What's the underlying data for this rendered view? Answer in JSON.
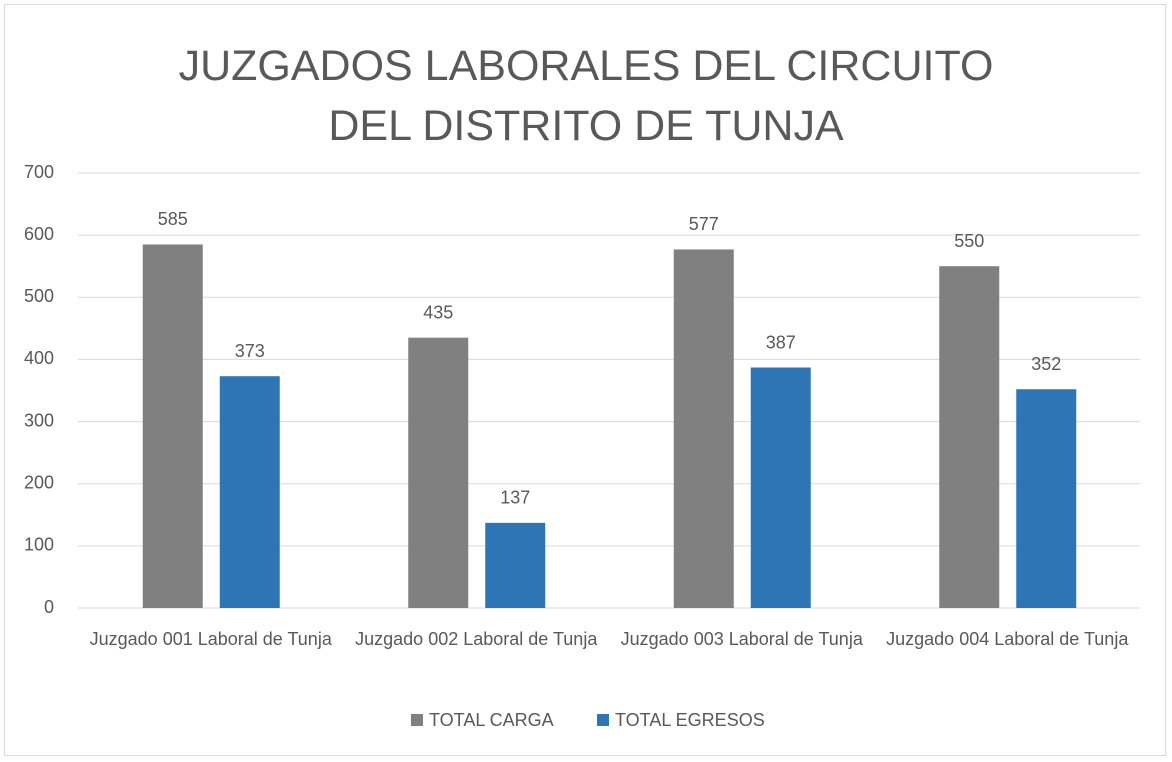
{
  "chart_data": {
    "type": "bar",
    "title": "JUZGADOS LABORALES DEL CIRCUITO DEL DISTRITO DE TUNJA",
    "categories": [
      "Juzgado 001 Laboral de Tunja",
      "Juzgado 002 Laboral de Tunja",
      "Juzgado 003 Laboral de Tunja",
      "Juzgado 004 Laboral de Tunja"
    ],
    "series": [
      {
        "name": "TOTAL CARGA",
        "color": "#808080",
        "values": [
          585,
          435,
          577,
          550
        ]
      },
      {
        "name": "TOTAL EGRESOS",
        "color": "#2e75b6",
        "values": [
          373,
          137,
          387,
          352
        ]
      }
    ],
    "ylim": [
      0,
      700
    ],
    "yticks": [
      0,
      100,
      200,
      300,
      400,
      500,
      600,
      700
    ],
    "grid": true,
    "legend": "bottom"
  }
}
